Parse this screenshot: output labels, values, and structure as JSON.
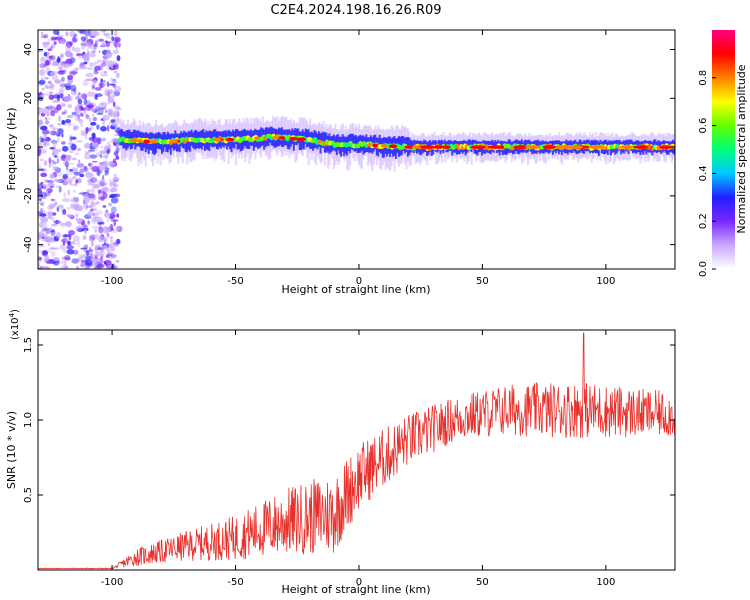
{
  "page_title": "C2E4.2024.198.16.26.R09",
  "colors": {
    "line": "#e8302c",
    "axis": "#000000",
    "colorbar_stops": [
      "#ffffff",
      "#c8a8ff",
      "#7a28ff",
      "#2020ff",
      "#00c8ff",
      "#00ff7a",
      "#60ff00",
      "#ffff00",
      "#ff8000",
      "#ff0000",
      "#ff0080"
    ]
  },
  "chart_data": [
    {
      "id": "spectrogram",
      "type": "heatmap",
      "xlabel": "Height of straight line (km)",
      "ylabel": "Frequency (Hz)",
      "xlim": [
        -130,
        128
      ],
      "ylim": [
        -50,
        48
      ],
      "xticks": [
        -100,
        -50,
        0,
        50,
        100
      ],
      "yticks": [
        -40,
        -20,
        0,
        20,
        40
      ],
      "colorbar": {
        "label": "Normalized spectral amplitude",
        "range": [
          0,
          1
        ],
        "ticks": [
          "0.0",
          "0.2",
          "0.4",
          "0.6",
          "0.8"
        ]
      },
      "noise_region_x": [
        -130,
        -97
      ],
      "band_center": [
        {
          "x": -97,
          "y": 3
        },
        {
          "x": -80,
          "y": 2
        },
        {
          "x": -65,
          "y": 3
        },
        {
          "x": -50,
          "y": 3
        },
        {
          "x": -35,
          "y": 4
        },
        {
          "x": -20,
          "y": 3
        },
        {
          "x": -10,
          "y": 1
        },
        {
          "x": 0,
          "y": 1
        },
        {
          "x": 20,
          "y": 0
        },
        {
          "x": 60,
          "y": 0
        },
        {
          "x": 128,
          "y": 0
        }
      ]
    },
    {
      "id": "snr",
      "type": "line",
      "xlabel": "Height of straight line (km)",
      "ylabel": "SNR (10 * v/v)",
      "y_multiplier": "(x10",
      "y_multiplier_exp": "4",
      "xlim": [
        -130,
        128
      ],
      "ylim": [
        0,
        1.6
      ],
      "xticks": [
        -100,
        -50,
        0,
        50,
        100
      ],
      "yticks": [
        "0.5",
        "1.0",
        "1.5"
      ],
      "series": [
        {
          "color": "#e8302c",
          "envelope": [
            {
              "x": -130,
              "base": 0.01,
              "amp": 0.005
            },
            {
              "x": -100,
              "base": 0.01,
              "amp": 0.005
            },
            {
              "x": -90,
              "base": 0.08,
              "amp": 0.12
            },
            {
              "x": -70,
              "base": 0.15,
              "amp": 0.2
            },
            {
              "x": -50,
              "base": 0.2,
              "amp": 0.3
            },
            {
              "x": -30,
              "base": 0.3,
              "amp": 0.45
            },
            {
              "x": -10,
              "base": 0.35,
              "amp": 0.55
            },
            {
              "x": 0,
              "base": 0.6,
              "amp": 0.45
            },
            {
              "x": 20,
              "base": 0.85,
              "amp": 0.35
            },
            {
              "x": 40,
              "base": 1.0,
              "amp": 0.3
            },
            {
              "x": 60,
              "base": 1.05,
              "amp": 0.35
            },
            {
              "x": 90,
              "base": 1.05,
              "amp": 0.38
            },
            {
              "x": 128,
              "base": 1.02,
              "amp": 0.3
            }
          ],
          "max": {
            "x": 91,
            "y": 1.58
          }
        }
      ]
    }
  ]
}
